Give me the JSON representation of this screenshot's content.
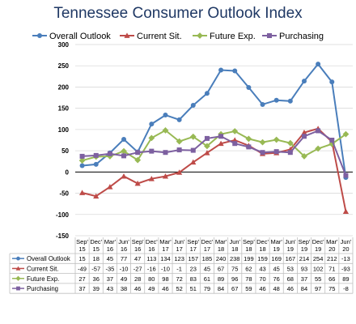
{
  "chart_data": {
    "type": "line",
    "title": "Tennessee Consumer Outlook Index",
    "xlabel": "",
    "ylabel": "",
    "ylim": [
      -150,
      300
    ],
    "yticks": [
      -150,
      -100,
      -50,
      0,
      50,
      100,
      150,
      200,
      250,
      300
    ],
    "grid": true,
    "legend_position": "top",
    "categories": [
      {
        "month": "Sep'",
        "year": "15"
      },
      {
        "month": "Dec'",
        "year": "15"
      },
      {
        "month": "Mar'",
        "year": "16"
      },
      {
        "month": "Jun'",
        "year": "16"
      },
      {
        "month": "Sep'",
        "year": "16"
      },
      {
        "month": "Dec'",
        "year": "16"
      },
      {
        "month": "Mar'",
        "year": "17"
      },
      {
        "month": "Jun'",
        "year": "17"
      },
      {
        "month": "Sep'",
        "year": "17"
      },
      {
        "month": "Dec'",
        "year": "17"
      },
      {
        "month": "Mar'",
        "year": "18"
      },
      {
        "month": "Jun'",
        "year": "18"
      },
      {
        "month": "Sep'",
        "year": "18"
      },
      {
        "month": "Dec'",
        "year": "18"
      },
      {
        "month": "Mar'",
        "year": "19"
      },
      {
        "month": "Jun'",
        "year": "19"
      },
      {
        "month": "Sep'",
        "year": "19"
      },
      {
        "month": "Dec'",
        "year": "19"
      },
      {
        "month": "Mar'",
        "year": "20"
      },
      {
        "month": "Jun'",
        "year": "20"
      }
    ],
    "series": [
      {
        "name": "Overall Outlook",
        "color": "#4a7ebb",
        "marker": "circle",
        "values": [
          15,
          18,
          45,
          77,
          47,
          113,
          134,
          123,
          157,
          185,
          240,
          238,
          199,
          159,
          169,
          167,
          214,
          254,
          212,
          -13
        ]
      },
      {
        "name": "Current Sit.",
        "color": "#be4b48",
        "marker": "triangle",
        "values": [
          -49,
          -57,
          -35,
          -10,
          -27,
          -16,
          -10,
          -1,
          23,
          45,
          67,
          75,
          62,
          43,
          45,
          53,
          93,
          102,
          71,
          -93
        ]
      },
      {
        "name": "Future Exp.",
        "color": "#98b954",
        "marker": "diamond",
        "values": [
          27,
          36,
          37,
          49,
          28,
          80,
          98,
          72,
          83,
          61,
          89,
          96,
          78,
          70,
          76,
          68,
          37,
          55,
          66,
          89
        ]
      },
      {
        "name": "Purchasing",
        "color": "#7d60a0",
        "marker": "square",
        "values": [
          37,
          39,
          43,
          38,
          46,
          49,
          46,
          52,
          51,
          79,
          84,
          67,
          59,
          46,
          48,
          46,
          84,
          97,
          75,
          -8
        ]
      }
    ]
  }
}
